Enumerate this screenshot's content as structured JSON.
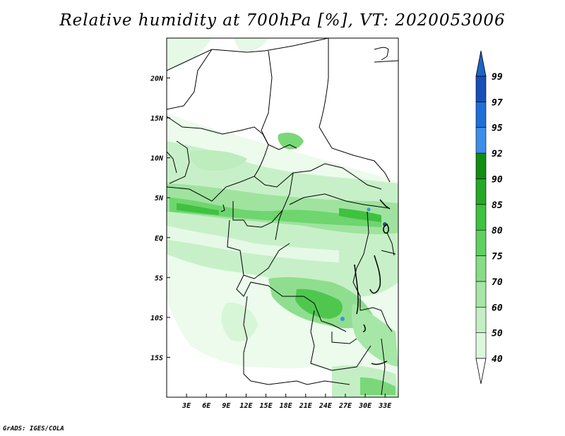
{
  "title": "Relative humidity at 700hPa [%], VT: 2020053006",
  "credit": "GrADS: IGES/COLA",
  "axes": {
    "lat_labels": [
      "20N",
      "15N",
      "10N",
      "5N",
      "EQ",
      "5S",
      "10S",
      "15S"
    ],
    "lat_values": [
      20,
      15,
      10,
      5,
      0,
      -5,
      -10,
      -15
    ],
    "lon_labels": [
      "3E",
      "6E",
      "9E",
      "12E",
      "15E",
      "18E",
      "21E",
      "24E",
      "27E",
      "30E",
      "33E"
    ],
    "lon_values": [
      3,
      6,
      9,
      12,
      15,
      18,
      21,
      24,
      27,
      30,
      33
    ],
    "lon_range": [
      0,
      35
    ],
    "lat_range": [
      -20,
      25
    ]
  },
  "colorbar": {
    "labels": [
      "40",
      "50",
      "60",
      "70",
      "75",
      "80",
      "85",
      "90",
      "92",
      "95",
      "97",
      "99"
    ],
    "colors": [
      "#f0fdf0",
      "#ddf7dd",
      "#c4efc4",
      "#a6e6a6",
      "#86dd86",
      "#5fd05f",
      "#3fc23f",
      "#26a826",
      "#108e10",
      "#3c8ee8",
      "#1f6fd8",
      "#174fb8"
    ],
    "bottom_color": "#ffffff",
    "top_color": "#1e63c6"
  }
}
